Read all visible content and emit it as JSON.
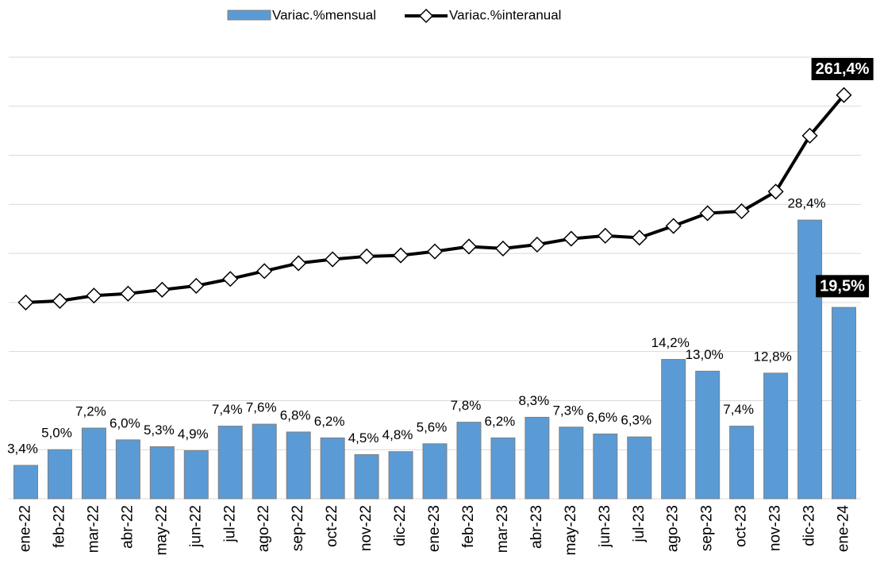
{
  "chart_data": {
    "type": "bar-line",
    "categories": [
      "ene-22",
      "feb-22",
      "mar-22",
      "abr-22",
      "may-22",
      "jun-22",
      "jul-22",
      "ago-22",
      "sep-22",
      "oct-22",
      "nov-22",
      "dic-22",
      "ene-23",
      "feb-23",
      "mar-23",
      "abr-23",
      "may-23",
      "jun-23",
      "jul-23",
      "ago-23",
      "sep-23",
      "oct-23",
      "nov-23",
      "dic-23",
      "ene-24"
    ],
    "series": [
      {
        "name": "Variac.%mensual",
        "type": "bar",
        "color": "#5b9bd5",
        "values": [
          3.4,
          5.0,
          7.2,
          6.0,
          5.3,
          4.9,
          7.4,
          7.6,
          6.8,
          6.2,
          4.5,
          4.8,
          5.6,
          7.8,
          6.2,
          8.3,
          7.3,
          6.6,
          6.3,
          14.2,
          13.0,
          7.4,
          12.8,
          28.4,
          19.5
        ],
        "value_labels": [
          "3,4%",
          "5,0%",
          "7,2%",
          "6,0%",
          "5,3%",
          "4,9%",
          "7,4%",
          "7,6%",
          "6,8%",
          "6,2%",
          "4,5%",
          "4,8%",
          "5,6%",
          "7,8%",
          "6,2%",
          "8,3%",
          "7,3%",
          "6,6%",
          "6,3%",
          "14,2%",
          "13,0%",
          "7,4%",
          "12,8%",
          "28,4%",
          "19,5%"
        ]
      },
      {
        "name": "Variac.%interanual",
        "type": "line",
        "axis": "y2",
        "color": "#000000",
        "values": [
          50,
          51.6,
          57,
          59,
          63,
          67,
          74,
          82,
          90,
          94,
          97,
          98,
          102,
          107,
          105,
          109,
          115,
          118,
          116,
          128,
          141,
          143,
          163,
          220,
          261.4
        ],
        "value_labels": [
          null,
          null,
          null,
          null,
          null,
          null,
          null,
          null,
          null,
          null,
          null,
          null,
          null,
          null,
          null,
          null,
          null,
          null,
          null,
          null,
          null,
          null,
          null,
          null,
          "261,4%"
        ]
      }
    ],
    "ylim": [
      0,
      45
    ],
    "yticks": [
      0,
      5,
      10,
      15,
      20,
      25,
      30,
      35,
      40,
      45
    ],
    "y2lim": [
      -150,
      300
    ],
    "grid": true
  }
}
